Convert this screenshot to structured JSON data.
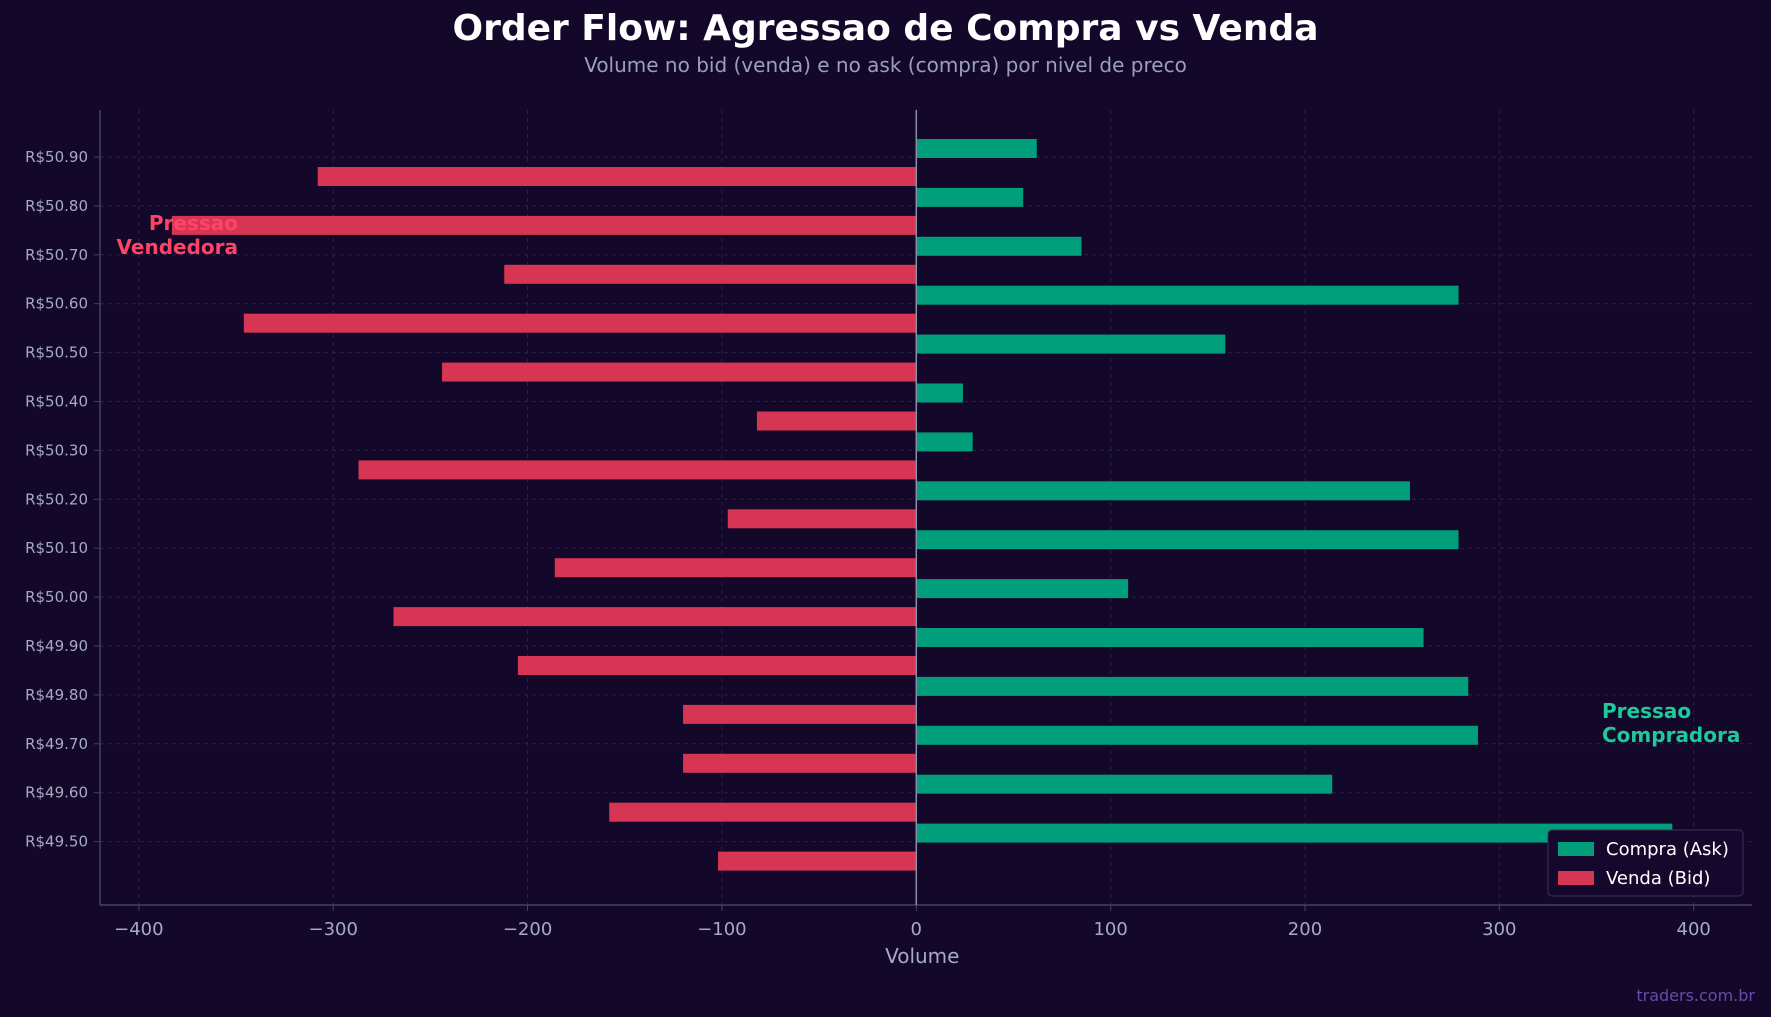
{
  "watermark": "traders.com.br",
  "chart_data": {
    "type": "bar",
    "orientation": "horizontal",
    "title": "Order Flow: Agressao de Compra vs Venda",
    "subtitle": "Volume no bid (venda) e no ask (compra) por nivel de preco",
    "xlabel": "Volume",
    "ylabel": "",
    "xlim": [
      -420,
      430
    ],
    "xticks": [
      -400,
      -300,
      -200,
      -100,
      0,
      100,
      200,
      300,
      400
    ],
    "xtick_labels": [
      "−400",
      "−300",
      "−200",
      "−100",
      "0",
      "100",
      "200",
      "300",
      "400"
    ],
    "categories": [
      "R$50.90",
      "R$50.80",
      "R$50.70",
      "R$50.60",
      "R$50.50",
      "R$50.40",
      "R$50.30",
      "R$50.20",
      "R$50.10",
      "R$50.00",
      "R$49.90",
      "R$49.80",
      "R$49.70",
      "R$49.60",
      "R$49.50"
    ],
    "series": [
      {
        "name": "Compra (Ask)",
        "color": "#009e7a",
        "values": [
          62,
          55,
          85,
          279,
          159,
          24,
          29,
          254,
          279,
          109,
          261,
          284,
          289,
          214,
          389
        ]
      },
      {
        "name": "Venda (Bid)",
        "color": "#d63553",
        "values": [
          -308,
          -383,
          -212,
          -346,
          -244,
          -82,
          -287,
          -97,
          -186,
          -269,
          -205,
          -120,
          -120,
          -158,
          -102
        ]
      }
    ],
    "annotations": [
      {
        "text": "Pressao\nVendedora",
        "color": "#ff4466"
      },
      {
        "text": "Pressao\nCompradora",
        "color": "#1ec99b"
      }
    ],
    "legend_position": "lower-right",
    "grid": true,
    "colors": {
      "background": "#13082a",
      "axis": "#44406a",
      "zero_line": "#8a8fa8",
      "grid": "#2a2148"
    }
  }
}
